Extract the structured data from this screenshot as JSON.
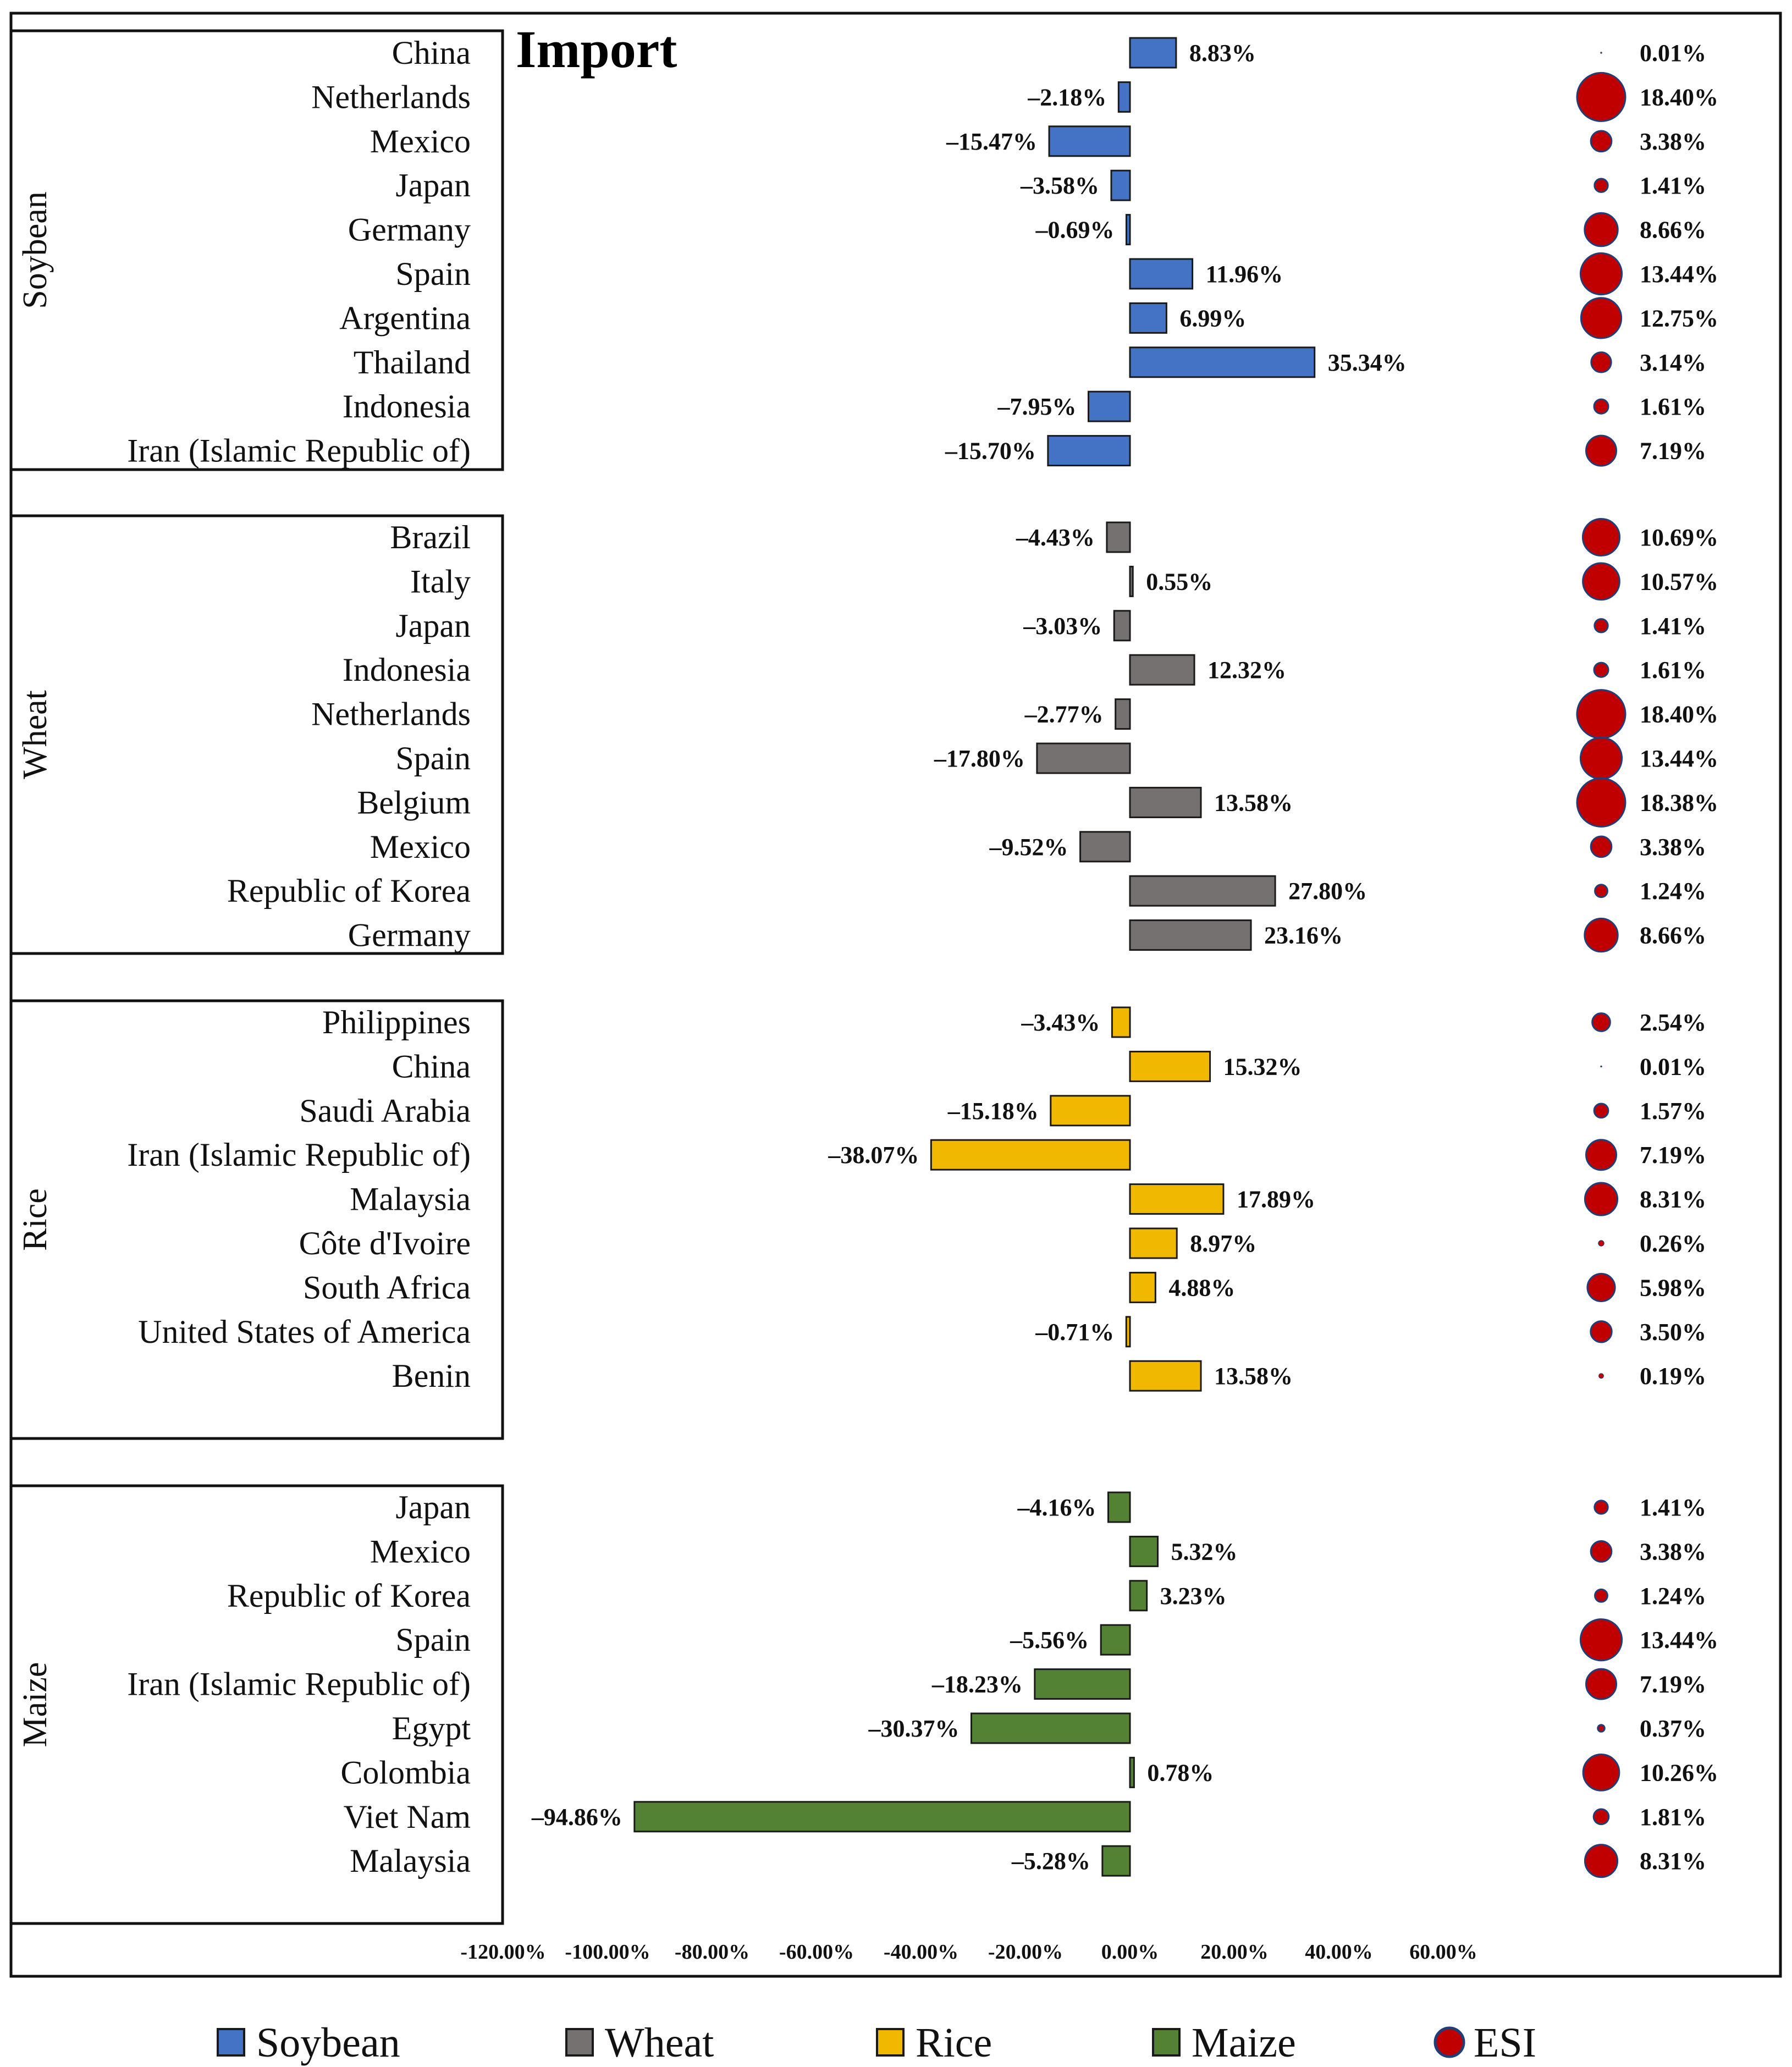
{
  "chart_data": {
    "type": "bar",
    "title": "Import",
    "orientation": "horizontal",
    "xlim": [
      -120,
      60
    ],
    "x_ticks": [
      "-120.00%",
      "-100.00%",
      "-80.00%",
      "-60.00%",
      "-40.00%",
      "-20.00%",
      "0.00%",
      "20.00%",
      "40.00%",
      "60.00%"
    ],
    "x_tick_values": [
      -120,
      -100,
      -80,
      -60,
      -40,
      -20,
      0,
      20,
      40,
      60
    ],
    "colors": {
      "Soybean": "#4472C4",
      "Wheat": "#767171",
      "Rice": "#F0B800",
      "Maize": "#548235",
      "ESI": "#C00000",
      "ESI_edge": "#1F3F7A"
    },
    "groups": [
      {
        "name": "Soybean",
        "countries": [
          "China",
          "Netherlands",
          "Mexico",
          "Japan",
          "Germany",
          "Spain",
          "Argentina",
          "Thailand",
          "Indonesia",
          "Iran (Islamic Republic of)"
        ],
        "values": [
          8.83,
          -2.18,
          -15.47,
          -3.58,
          -0.69,
          11.96,
          6.99,
          35.34,
          -7.95,
          -15.7
        ],
        "value_labels": [
          "8.83%",
          "–2.18%",
          "–15.47%",
          "–3.58%",
          "–0.69%",
          "11.96%",
          "6.99%",
          "35.34%",
          "–7.95%",
          "–15.70%"
        ],
        "esi": [
          0.01,
          18.4,
          3.38,
          1.41,
          8.66,
          13.44,
          12.75,
          3.14,
          1.61,
          7.19
        ],
        "esi_labels": [
          "0.01%",
          "18.40%",
          "3.38%",
          "1.41%",
          "8.66%",
          "13.44%",
          "12.75%",
          "3.14%",
          "1.61%",
          "7.19%"
        ]
      },
      {
        "name": "Wheat",
        "countries": [
          "Brazil",
          "Italy",
          "Japan",
          "Indonesia",
          "Netherlands",
          "Spain",
          "Belgium",
          "Mexico",
          "Republic of Korea",
          "Germany"
        ],
        "values": [
          -4.43,
          0.55,
          -3.03,
          12.32,
          -2.77,
          -17.8,
          13.58,
          -9.52,
          27.8,
          23.16
        ],
        "value_labels": [
          "–4.43%",
          "0.55%",
          "–3.03%",
          "12.32%",
          "–2.77%",
          "–17.80%",
          "13.58%",
          "–9.52%",
          "27.80%",
          "23.16%"
        ],
        "esi": [
          10.69,
          10.57,
          1.41,
          1.61,
          18.4,
          13.44,
          18.38,
          3.38,
          1.24,
          8.66
        ],
        "esi_labels": [
          "10.69%",
          "10.57%",
          "1.41%",
          "1.61%",
          "18.40%",
          "13.44%",
          "18.38%",
          "3.38%",
          "1.24%",
          "8.66%"
        ]
      },
      {
        "name": "Rice",
        "countries": [
          "Philippines",
          "China",
          "Saudi Arabia",
          "Iran (Islamic Republic of)",
          "Malaysia",
          "Côte d'Ivoire",
          "South Africa",
          "United States of America",
          "Benin"
        ],
        "values": [
          -3.43,
          15.32,
          -15.18,
          -38.07,
          17.89,
          8.97,
          4.88,
          -0.71,
          13.58
        ],
        "value_labels": [
          "–3.43%",
          "15.32%",
          "–15.18%",
          "–38.07%",
          "17.89%",
          "8.97%",
          "4.88%",
          "–0.71%",
          "13.58%"
        ],
        "esi": [
          2.54,
          0.01,
          1.57,
          7.19,
          8.31,
          0.26,
          5.98,
          3.5,
          0.19
        ],
        "esi_labels": [
          "2.54%",
          "0.01%",
          "1.57%",
          "7.19%",
          "8.31%",
          "0.26%",
          "5.98%",
          "3.50%",
          "0.19%"
        ]
      },
      {
        "name": "Maize",
        "countries": [
          "Japan",
          "Mexico",
          "Republic of Korea",
          "Spain",
          "Iran (Islamic Republic of)",
          "Egypt",
          "Colombia",
          "Viet Nam",
          "Malaysia"
        ],
        "values": [
          -4.16,
          5.32,
          3.23,
          -5.56,
          -18.23,
          -30.37,
          0.78,
          -94.86,
          -5.28
        ],
        "value_labels": [
          "–4.16%",
          "5.32%",
          "3.23%",
          "–5.56%",
          "–18.23%",
          "–30.37%",
          "0.78%",
          "–94.86%",
          "–5.28%"
        ],
        "esi": [
          1.41,
          3.38,
          1.24,
          13.44,
          7.19,
          0.37,
          10.26,
          1.81,
          8.31
        ],
        "esi_labels": [
          "1.41%",
          "3.38%",
          "1.24%",
          "13.44%",
          "7.19%",
          "0.37%",
          "10.26%",
          "1.81%",
          "8.31%"
        ]
      }
    ],
    "legend": [
      "Soybean",
      "Wheat",
      "Rice",
      "Maize",
      "ESI"
    ],
    "legend_position": "bottom"
  }
}
